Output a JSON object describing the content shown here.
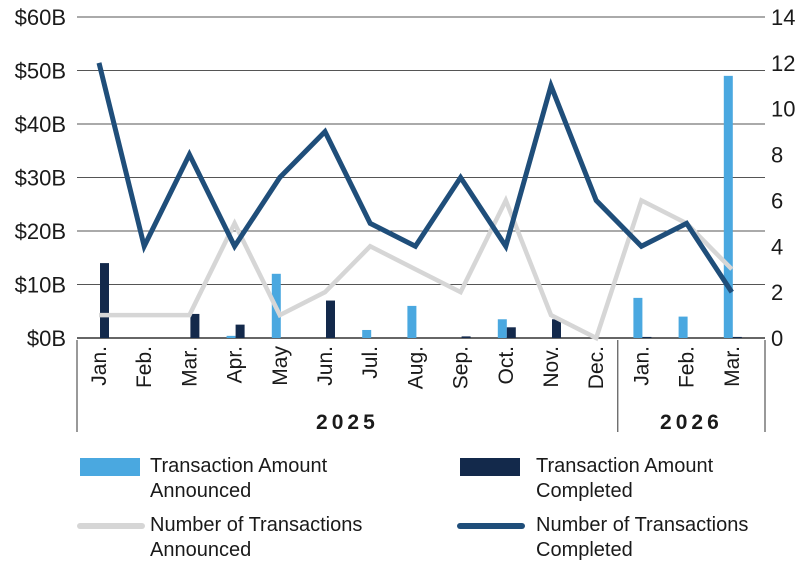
{
  "chart_data": {
    "type": "bar+line",
    "categories": [
      "Jan.",
      "Feb.",
      "Mar.",
      "Apr.",
      "May",
      "Jun.",
      "Jul.",
      "Aug.",
      "Sep.",
      "Oct.",
      "Nov.",
      "Dec.",
      "Jan.",
      "Feb.",
      "Mar."
    ],
    "groups": [
      {
        "label": "2025",
        "count": 12
      },
      {
        "label": "2026",
        "count": 3
      }
    ],
    "left_axis": {
      "ylim": [
        0,
        60
      ],
      "ticks": [
        0,
        10,
        20,
        30,
        40,
        50,
        60
      ],
      "tick_labels": [
        "$0B",
        "$10B",
        "$20B",
        "$30B",
        "$40B",
        "$50B",
        "$60B"
      ]
    },
    "right_axis": {
      "ylim": [
        0,
        14
      ],
      "ticks": [
        0,
        2,
        4,
        6,
        8,
        10,
        12,
        14
      ],
      "tick_labels": [
        "0",
        "2",
        "4",
        "6",
        "8",
        "10",
        "12",
        "14"
      ]
    },
    "series": [
      {
        "name": "Transaction Amount Announced",
        "type": "bar",
        "axis": "left",
        "color": "#4aa8e0",
        "values": [
          0,
          0,
          0,
          0.4,
          12,
          0,
          1.5,
          6,
          0,
          3.5,
          0,
          0,
          7.5,
          4,
          49
        ]
      },
      {
        "name": "Transaction Amount Completed",
        "type": "bar",
        "axis": "left",
        "color": "#13294b",
        "values": [
          14,
          0,
          4.5,
          2.5,
          0,
          7,
          0,
          0,
          0.3,
          2,
          3.5,
          0,
          0.2,
          0,
          0.2
        ]
      },
      {
        "name": "Number of Transactions Announced",
        "type": "line",
        "axis": "right",
        "color": "#d6d6d6",
        "values": [
          1,
          1,
          1,
          5,
          1,
          2,
          4,
          3,
          2,
          6,
          1,
          0,
          6,
          5,
          3
        ]
      },
      {
        "name": "Number of Transactions Completed",
        "type": "line",
        "axis": "right",
        "color": "#1f4e7a",
        "values": [
          12,
          4,
          8,
          4,
          7,
          9,
          5,
          4,
          7,
          4,
          11,
          6,
          4,
          5,
          2
        ]
      }
    ],
    "legend": {
      "placement": "bottom",
      "items": [
        {
          "line1": "Transaction Amount",
          "line2": "Announced",
          "series": 0,
          "marker": "bar"
        },
        {
          "line1": "Transaction Amount",
          "line2": "Completed",
          "series": 1,
          "marker": "bar"
        },
        {
          "line1": "Number of Transactions",
          "line2": "Announced",
          "series": 2,
          "marker": "line"
        },
        {
          "line1": "Number of Transactions",
          "line2": "Completed",
          "series": 3,
          "marker": "line"
        }
      ]
    },
    "grid": true,
    "title": "",
    "xlabel": "",
    "ylabel": ""
  }
}
